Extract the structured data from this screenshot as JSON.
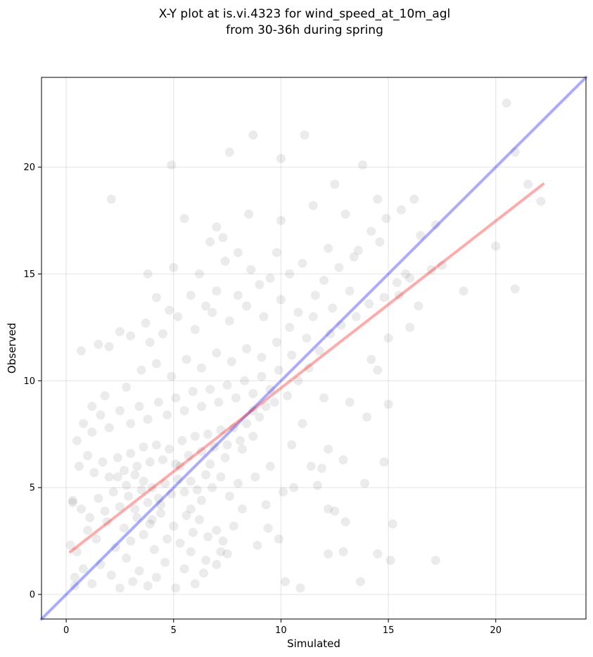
{
  "chart_data": {
    "type": "scatter",
    "title_lines": [
      "X-Y plot at is.vi.4323 for wind_speed_at_10m_agl",
      "from 30-36h during spring"
    ],
    "xlabel": "Simulated",
    "ylabel": "Observed",
    "xlim": [
      -1.15,
      24.2
    ],
    "ylim": [
      -1.15,
      24.2
    ],
    "xticks": [
      0,
      5,
      10,
      15,
      20
    ],
    "yticks": [
      0,
      5,
      10,
      15,
      20
    ],
    "grid": true,
    "point_color": "#000000",
    "point_alpha": 0.08,
    "points": [
      [
        0.5,
        2.0
      ],
      [
        0.8,
        1.2
      ],
      [
        1.2,
        0.5
      ],
      [
        0.4,
        0.8
      ],
      [
        1.6,
        1.4
      ],
      [
        2.1,
        0.9
      ],
      [
        2.5,
        0.3
      ],
      [
        2.8,
        1.7
      ],
      [
        3.1,
        0.6
      ],
      [
        3.4,
        1.1
      ],
      [
        3.8,
        0.4
      ],
      [
        4.2,
        0.8
      ],
      [
        4.6,
        1.5
      ],
      [
        5.1,
        0.3
      ],
      [
        5.5,
        1.2
      ],
      [
        6.0,
        0.5
      ],
      [
        6.4,
        1.0
      ],
      [
        7.0,
        1.4
      ],
      [
        7.5,
        1.9
      ],
      [
        1.0,
        3.0
      ],
      [
        1.4,
        2.6
      ],
      [
        1.9,
        3.4
      ],
      [
        2.3,
        2.2
      ],
      [
        2.7,
        3.1
      ],
      [
        3.0,
        2.5
      ],
      [
        3.3,
        3.6
      ],
      [
        3.6,
        2.8
      ],
      [
        3.9,
        3.3
      ],
      [
        4.1,
        2.1
      ],
      [
        4.4,
        3.8
      ],
      [
        4.7,
        2.6
      ],
      [
        5.0,
        3.2
      ],
      [
        5.3,
        2.4
      ],
      [
        5.6,
        3.7
      ],
      [
        5.9,
        2.9
      ],
      [
        6.2,
        3.5
      ],
      [
        6.6,
        2.7
      ],
      [
        7.0,
        3.0
      ],
      [
        7.3,
        2.5
      ],
      [
        0.3,
        4.4
      ],
      [
        0.7,
        4.0
      ],
      [
        1.1,
        3.6
      ],
      [
        1.5,
        4.5
      ],
      [
        1.8,
        3.9
      ],
      [
        2.2,
        4.8
      ],
      [
        2.5,
        4.1
      ],
      [
        2.9,
        4.6
      ],
      [
        3.2,
        4.0
      ],
      [
        3.5,
        4.9
      ],
      [
        3.8,
        4.3
      ],
      [
        4.0,
        5.0
      ],
      [
        4.3,
        4.5
      ],
      [
        4.6,
        5.2
      ],
      [
        4.9,
        4.7
      ],
      [
        5.2,
        5.4
      ],
      [
        5.5,
        4.8
      ],
      [
        5.8,
        5.3
      ],
      [
        6.1,
        4.9
      ],
      [
        6.5,
        5.6
      ],
      [
        6.8,
        5.0
      ],
      [
        7.2,
        5.5
      ],
      [
        7.6,
        4.6
      ],
      [
        8.0,
        5.2
      ],
      [
        0.6,
        6.0
      ],
      [
        1.0,
        6.5
      ],
      [
        1.3,
        5.7
      ],
      [
        1.7,
        6.2
      ],
      [
        2.0,
        5.5
      ],
      [
        2.4,
        6.4
      ],
      [
        2.7,
        5.8
      ],
      [
        3.0,
        6.6
      ],
      [
        3.3,
        6.0
      ],
      [
        3.6,
        6.9
      ],
      [
        3.9,
        6.2
      ],
      [
        4.2,
        7.0
      ],
      [
        4.5,
        6.3
      ],
      [
        4.8,
        6.8
      ],
      [
        5.1,
        6.1
      ],
      [
        5.4,
        7.2
      ],
      [
        5.7,
        6.5
      ],
      [
        6.0,
        7.4
      ],
      [
        6.3,
        6.7
      ],
      [
        6.6,
        7.5
      ],
      [
        6.9,
        6.9
      ],
      [
        7.2,
        7.7
      ],
      [
        7.5,
        7.0
      ],
      [
        7.8,
        7.8
      ],
      [
        8.1,
        7.2
      ],
      [
        8.4,
        8.0
      ],
      [
        8.7,
        7.4
      ],
      [
        9.0,
        8.3
      ],
      [
        0.8,
        8.0
      ],
      [
        1.2,
        7.6
      ],
      [
        1.6,
        8.4
      ],
      [
        2.0,
        7.8
      ],
      [
        2.5,
        8.6
      ],
      [
        3.0,
        8.0
      ],
      [
        3.4,
        8.8
      ],
      [
        3.8,
        8.2
      ],
      [
        4.3,
        9.0
      ],
      [
        4.7,
        8.4
      ],
      [
        5.1,
        9.2
      ],
      [
        5.5,
        8.6
      ],
      [
        5.9,
        9.5
      ],
      [
        6.3,
        8.8
      ],
      [
        6.7,
        9.6
      ],
      [
        7.1,
        9.0
      ],
      [
        7.5,
        9.8
      ],
      [
        7.9,
        9.2
      ],
      [
        8.3,
        10.0
      ],
      [
        8.7,
        9.4
      ],
      [
        9.1,
        10.2
      ],
      [
        9.5,
        9.6
      ],
      [
        9.9,
        10.5
      ],
      [
        2.8,
        9.7
      ],
      [
        3.5,
        10.5
      ],
      [
        4.2,
        10.8
      ],
      [
        4.9,
        10.2
      ],
      [
        5.6,
        11.0
      ],
      [
        6.3,
        10.6
      ],
      [
        7.0,
        11.3
      ],
      [
        7.7,
        10.9
      ],
      [
        8.4,
        11.5
      ],
      [
        9.1,
        11.1
      ],
      [
        9.8,
        11.8
      ],
      [
        10.5,
        11.2
      ],
      [
        11.2,
        12.0
      ],
      [
        3.7,
        12.7
      ],
      [
        4.5,
        12.2
      ],
      [
        5.2,
        13.0
      ],
      [
        6.0,
        12.4
      ],
      [
        6.8,
        13.2
      ],
      [
        7.6,
        12.8
      ],
      [
        8.4,
        13.5
      ],
      [
        9.2,
        13.0
      ],
      [
        10.0,
        13.8
      ],
      [
        10.8,
        13.2
      ],
      [
        11.6,
        14.0
      ],
      [
        12.4,
        13.4
      ],
      [
        13.2,
        14.2
      ],
      [
        3.8,
        15.0
      ],
      [
        5.0,
        15.3
      ],
      [
        6.2,
        15.0
      ],
      [
        7.4,
        15.6
      ],
      [
        8.6,
        15.2
      ],
      [
        9.8,
        16.0
      ],
      [
        11.0,
        15.5
      ],
      [
        12.2,
        16.2
      ],
      [
        13.4,
        15.8
      ],
      [
        14.6,
        16.5
      ],
      [
        5.5,
        17.6
      ],
      [
        7.0,
        17.2
      ],
      [
        8.5,
        17.8
      ],
      [
        10.0,
        17.5
      ],
      [
        11.5,
        18.2
      ],
      [
        13.0,
        17.8
      ],
      [
        14.5,
        18.5
      ],
      [
        7.6,
        20.7
      ],
      [
        8.7,
        21.5
      ],
      [
        10.0,
        20.4
      ],
      [
        11.1,
        21.5
      ],
      [
        12.5,
        19.2
      ],
      [
        13.8,
        20.1
      ],
      [
        4.9,
        20.1
      ],
      [
        2.1,
        18.5
      ],
      [
        20.5,
        23.0
      ],
      [
        21.5,
        19.2
      ],
      [
        20.9,
        20.7
      ],
      [
        22.1,
        18.4
      ],
      [
        20.9,
        14.3
      ],
      [
        20.0,
        16.3
      ],
      [
        18.5,
        14.2
      ],
      [
        17.2,
        1.6
      ],
      [
        15.1,
        1.6
      ],
      [
        14.5,
        1.9
      ],
      [
        13.7,
        0.6
      ],
      [
        10.9,
        0.3
      ],
      [
        10.2,
        0.6
      ],
      [
        9.9,
        2.6
      ],
      [
        12.2,
        1.9
      ],
      [
        12.9,
        2.0
      ],
      [
        13.9,
        5.2
      ],
      [
        14.8,
        6.2
      ],
      [
        15.2,
        3.3
      ],
      [
        12.2,
        4.0
      ],
      [
        12.5,
        3.9
      ],
      [
        13.0,
        3.4
      ],
      [
        11.4,
        6.0
      ],
      [
        11.9,
        5.9
      ],
      [
        12.2,
        6.8
      ],
      [
        12.9,
        6.3
      ],
      [
        14.0,
        8.3
      ],
      [
        15.0,
        8.9
      ],
      [
        14.5,
        10.5
      ],
      [
        13.2,
        9.0
      ],
      [
        16.4,
        13.5
      ],
      [
        15.5,
        14.0
      ],
      [
        16.0,
        12.5
      ],
      [
        15.0,
        12.0
      ],
      [
        14.2,
        11.0
      ],
      [
        16.5,
        16.8
      ],
      [
        17.2,
        17.3
      ],
      [
        15.8,
        15.0
      ],
      [
        12.0,
        9.2
      ],
      [
        11.0,
        8.0
      ],
      [
        10.5,
        7.0
      ],
      [
        9.5,
        6.0
      ],
      [
        8.8,
        5.5
      ],
      [
        8.2,
        4.0
      ],
      [
        7.8,
        3.2
      ],
      [
        7.2,
        2.0
      ],
      [
        6.5,
        1.6
      ],
      [
        5.8,
        2.0
      ],
      [
        2.0,
        11.6
      ],
      [
        1.5,
        11.7
      ],
      [
        0.7,
        11.4
      ],
      [
        2.5,
        12.3
      ],
      [
        3.0,
        12.1
      ],
      [
        1.8,
        9.3
      ],
      [
        1.2,
        8.8
      ],
      [
        0.3,
        4.3
      ],
      [
        0.5,
        7.2
      ],
      [
        0.2,
        2.3
      ],
      [
        0.4,
        0.4
      ],
      [
        9.3,
        4.2
      ],
      [
        10.1,
        4.8
      ],
      [
        10.6,
        5.0
      ],
      [
        11.7,
        5.1
      ],
      [
        8.9,
        2.3
      ],
      [
        9.4,
        3.1
      ],
      [
        6.3,
        4.4
      ],
      [
        5.8,
        4.0
      ],
      [
        4.4,
        4.2
      ],
      [
        4.0,
        3.5
      ],
      [
        3.6,
        5.3
      ],
      [
        3.2,
        5.6
      ],
      [
        2.8,
        5.1
      ],
      [
        2.4,
        5.5
      ],
      [
        5.3,
        6.0
      ],
      [
        6.7,
        6.1
      ],
      [
        7.4,
        6.4
      ],
      [
        8.2,
        6.8
      ],
      [
        8.7,
        8.6
      ],
      [
        9.3,
        8.8
      ],
      [
        9.7,
        9.0
      ],
      [
        10.3,
        9.3
      ],
      [
        10.8,
        10.0
      ],
      [
        11.3,
        10.6
      ],
      [
        11.8,
        11.4
      ],
      [
        12.3,
        12.2
      ],
      [
        12.8,
        12.6
      ],
      [
        13.5,
        13.0
      ],
      [
        14.1,
        13.6
      ],
      [
        14.8,
        13.9
      ],
      [
        15.4,
        14.6
      ],
      [
        16.0,
        14.8
      ],
      [
        17.0,
        15.2
      ],
      [
        17.5,
        15.4
      ],
      [
        9.0,
        14.5
      ],
      [
        8.0,
        14.0
      ],
      [
        7.0,
        14.2
      ],
      [
        6.5,
        13.5
      ],
      [
        5.8,
        14.0
      ],
      [
        4.8,
        13.3
      ],
      [
        4.2,
        13.9
      ],
      [
        3.9,
        11.8
      ],
      [
        10.4,
        12.5
      ],
      [
        11.5,
        13.0
      ],
      [
        12.0,
        14.7
      ],
      [
        12.7,
        15.3
      ],
      [
        13.6,
        16.1
      ],
      [
        14.2,
        17.0
      ],
      [
        14.9,
        17.6
      ],
      [
        15.6,
        18.0
      ],
      [
        16.2,
        18.5
      ],
      [
        10.4,
        15.0
      ],
      [
        9.5,
        14.8
      ],
      [
        8.0,
        16.0
      ],
      [
        6.7,
        16.5
      ],
      [
        7.3,
        16.7
      ]
    ],
    "series": [
      {
        "name": "",
        "kind": "identity",
        "color": "#0000ff",
        "alpha": 0.33,
        "x": [
          -1.15,
          24.2
        ],
        "y": [
          -1.15,
          24.2
        ]
      },
      {
        "name": "",
        "kind": "regression",
        "color": "#ff0000",
        "alpha": 0.33,
        "x": [
          0.2,
          22.2
        ],
        "y": [
          2.0,
          19.2
        ]
      }
    ]
  }
}
